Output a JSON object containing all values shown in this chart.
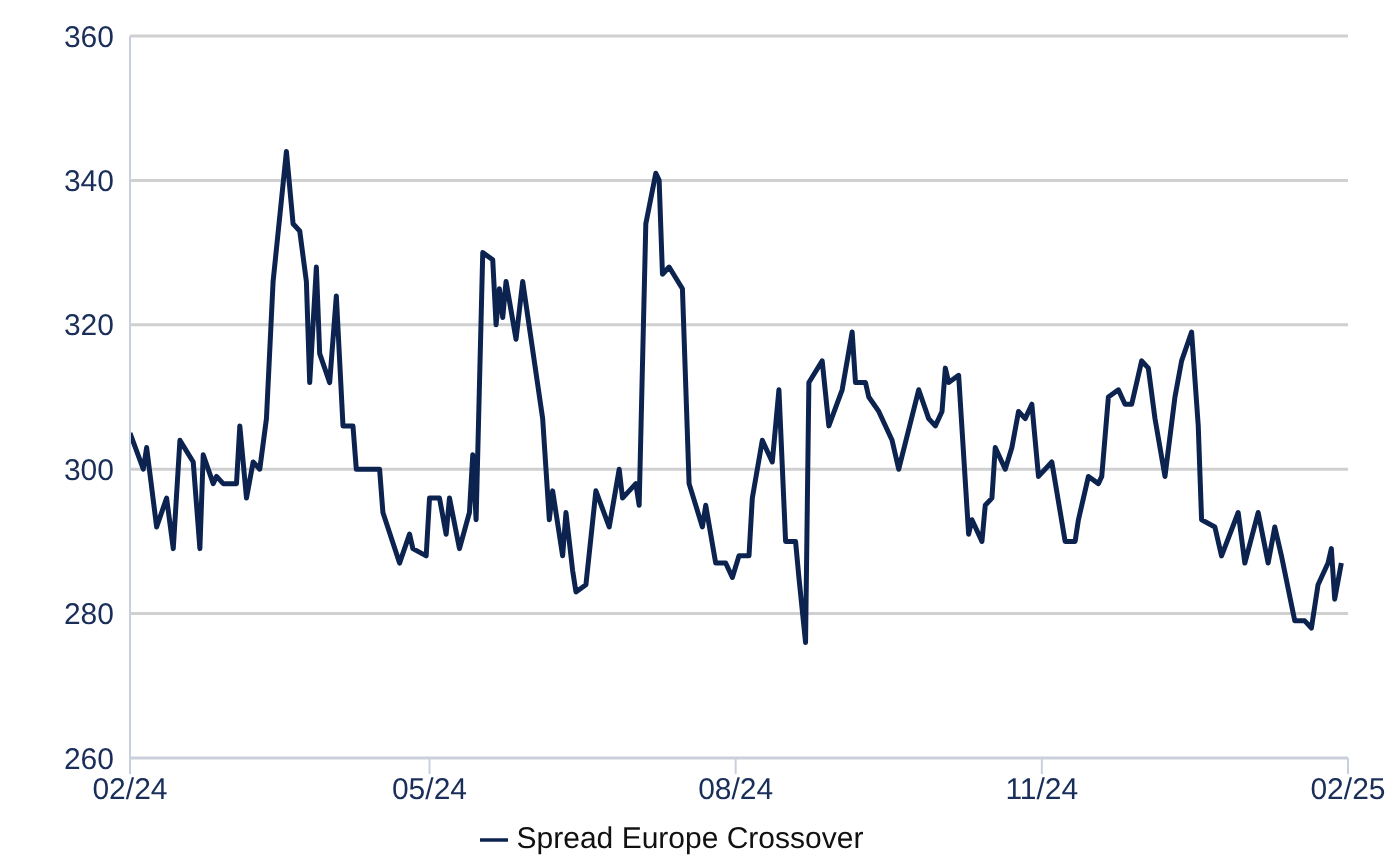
{
  "chart_data": {
    "type": "line",
    "x": [
      "2024-02-01",
      "2024-02-05",
      "2024-02-06",
      "2024-02-09",
      "2024-02-12",
      "2024-02-14",
      "2024-02-16",
      "2024-02-20",
      "2024-02-22",
      "2024-02-23",
      "2024-02-26",
      "2024-02-27",
      "2024-02-29",
      "2024-03-04",
      "2024-03-05",
      "2024-03-07",
      "2024-03-09",
      "2024-03-11",
      "2024-03-13",
      "2024-03-15",
      "2024-03-19",
      "2024-03-21",
      "2024-03-23",
      "2024-03-25",
      "2024-03-26",
      "2024-03-28",
      "2024-03-29",
      "2024-04-01",
      "2024-04-03",
      "2024-04-05",
      "2024-04-08",
      "2024-04-09",
      "2024-04-16",
      "2024-04-17",
      "2024-04-22",
      "2024-04-25",
      "2024-04-26",
      "2024-04-30",
      "2024-05-01",
      "2024-05-04",
      "2024-05-06",
      "2024-05-07",
      "2024-05-10",
      "2024-05-13",
      "2024-05-14",
      "2024-05-15",
      "2024-05-17",
      "2024-05-20",
      "2024-05-21",
      "2024-05-22",
      "2024-05-23",
      "2024-05-24",
      "2024-05-27",
      "2024-05-29",
      "2024-06-04",
      "2024-06-06",
      "2024-06-07",
      "2024-06-10",
      "2024-06-11",
      "2024-06-13",
      "2024-06-14",
      "2024-06-17",
      "2024-06-20",
      "2024-06-24",
      "2024-06-27",
      "2024-06-28",
      "2024-07-02",
      "2024-07-03",
      "2024-07-05",
      "2024-07-08",
      "2024-07-09",
      "2024-07-10",
      "2024-07-12",
      "2024-07-16",
      "2024-07-18",
      "2024-07-22",
      "2024-07-23",
      "2024-07-26",
      "2024-07-29",
      "2024-07-31",
      "2024-08-02",
      "2024-08-05",
      "2024-08-06",
      "2024-08-09",
      "2024-08-12",
      "2024-08-14",
      "2024-08-16",
      "2024-08-19",
      "2024-08-20",
      "2024-08-22",
      "2024-08-23",
      "2024-08-27",
      "2024-08-29",
      "2024-09-02",
      "2024-09-05",
      "2024-09-06",
      "2024-09-09",
      "2024-09-10",
      "2024-09-13",
      "2024-09-17",
      "2024-09-19",
      "2024-09-25",
      "2024-09-28",
      "2024-09-30",
      "2024-10-02",
      "2024-10-03",
      "2024-10-04",
      "2024-10-07",
      "2024-10-10",
      "2024-10-11",
      "2024-10-14",
      "2024-10-15",
      "2024-10-17",
      "2024-10-18",
      "2024-10-21",
      "2024-10-23",
      "2024-10-25",
      "2024-10-27",
      "2024-10-29",
      "2024-10-31",
      "2024-11-04",
      "2024-11-08",
      "2024-11-11",
      "2024-11-12",
      "2024-11-15",
      "2024-11-18",
      "2024-11-19",
      "2024-11-21",
      "2024-11-24",
      "2024-11-26",
      "2024-11-28",
      "2024-12-01",
      "2024-12-03",
      "2024-12-05",
      "2024-12-08",
      "2024-12-11",
      "2024-12-13",
      "2024-12-16",
      "2024-12-18",
      "2024-12-19",
      "2024-12-23",
      "2024-12-25",
      "2024-12-30",
      "2025-01-01",
      "2025-01-05",
      "2025-01-08",
      "2025-01-10",
      "2025-01-12",
      "2025-01-16",
      "2025-01-19",
      "2025-01-21",
      "2025-01-23",
      "2025-01-26",
      "2025-01-27",
      "2025-01-28",
      "2025-01-30"
    ],
    "series": [
      {
        "name": "Spread Europe Crossover",
        "color": "#0c2350",
        "values": [
          305,
          300,
          303,
          292,
          296,
          289,
          304,
          301,
          289,
          302,
          298,
          299,
          298,
          298,
          306,
          296,
          301,
          300,
          307,
          326,
          344,
          334,
          333,
          326,
          312,
          328,
          316,
          312,
          324,
          306,
          306,
          300,
          300,
          294,
          287,
          291,
          289,
          288,
          296,
          296,
          291,
          296,
          289,
          294,
          302,
          293,
          330,
          329,
          320,
          325,
          321,
          326,
          318,
          326,
          307,
          293,
          297,
          288,
          294,
          286,
          283,
          284,
          297,
          292,
          300,
          296,
          298,
          295,
          334,
          341,
          340,
          327,
          328,
          325,
          298,
          292,
          295,
          287,
          287,
          285,
          288,
          288,
          296,
          304,
          301,
          311,
          290,
          290,
          285,
          276,
          312,
          315,
          306,
          311,
          319,
          312,
          312,
          310,
          308,
          304,
          300,
          311,
          307,
          306,
          308,
          314,
          312,
          313,
          291,
          293,
          290,
          295,
          296,
          303,
          300,
          303,
          308,
          307,
          309,
          299,
          301,
          290,
          290,
          293,
          299,
          298,
          299,
          310,
          311,
          309,
          309,
          315,
          314,
          307,
          299,
          310,
          315,
          319,
          306,
          293,
          292,
          288,
          294,
          287,
          294,
          287,
          292,
          288,
          279,
          279,
          278,
          284,
          287,
          289,
          282,
          287
        ]
      }
    ],
    "xlim": [
      "2024-02-01",
      "2025-02-01"
    ],
    "xticks": [
      {
        "value": "2024-02-01",
        "label": "02/24"
      },
      {
        "value": "2024-05-01",
        "label": "05/24"
      },
      {
        "value": "2024-08-01",
        "label": "08/24"
      },
      {
        "value": "2024-11-01",
        "label": "11/24"
      },
      {
        "value": "2025-02-01",
        "label": "02/25"
      }
    ],
    "ylim": [
      260,
      360
    ],
    "yticks": [
      260,
      280,
      300,
      320,
      340,
      360
    ],
    "grid": "y",
    "legend": "bottom",
    "marker": "none",
    "line_style": "solid"
  }
}
